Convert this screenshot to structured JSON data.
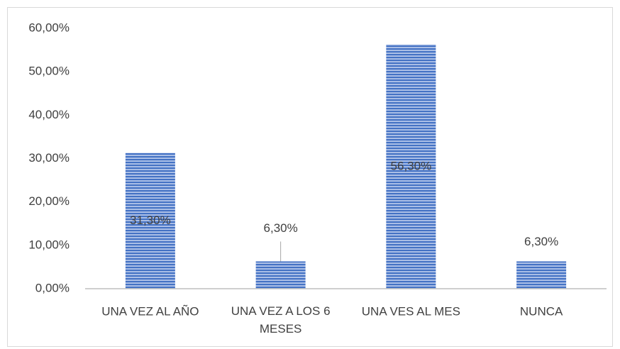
{
  "chart_data": {
    "type": "bar",
    "categories": [
      "UNA VEZ AL AÑO",
      "UNA VEZ A LOS 6 MESES",
      "UNA VES AL MES",
      "NUNCA"
    ],
    "values": [
      31.3,
      6.3,
      56.3,
      6.3
    ],
    "value_labels": [
      "31,30%",
      "6,30%",
      "56,30%",
      "6,30%"
    ],
    "color": "#4472c4",
    "ylim": [
      0,
      60
    ],
    "yticks": [
      {
        "value": 0,
        "label": "0,00%"
      },
      {
        "value": 10,
        "label": "10,00%"
      },
      {
        "value": 20,
        "label": "20,00%"
      },
      {
        "value": 30,
        "label": "30,00%"
      },
      {
        "value": 40,
        "label": "40,00%"
      },
      {
        "value": 50,
        "label": "50,00%"
      },
      {
        "value": 60,
        "label": "60,00%"
      }
    ],
    "grid": false
  }
}
